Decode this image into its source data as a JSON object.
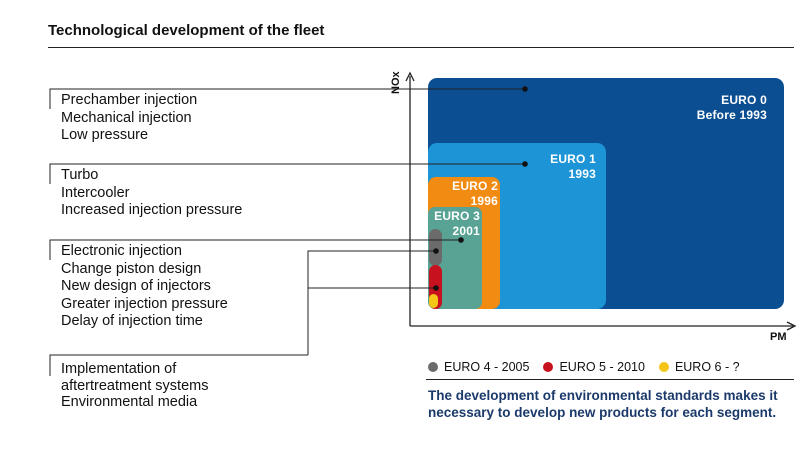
{
  "title": "Technological development of the fleet",
  "groups": [
    {
      "lines": [
        "Prechamber injection",
        "Mechanical injection",
        "Low pressure"
      ]
    },
    {
      "lines": [
        "Turbo",
        "Intercooler",
        "Increased injection pressure"
      ]
    },
    {
      "lines": [
        "Electronic injection",
        "Change piston design",
        "New design of injectors",
        "Greater injection pressure",
        "Delay of injection time"
      ]
    },
    {
      "lines": [
        "Implementation of",
        "aftertreatment systems",
        "Environmental media"
      ]
    }
  ],
  "axes": {
    "y_label": "NOx",
    "x_label": "PM"
  },
  "standards": [
    {
      "name": "EURO 0",
      "year": "Before 1993",
      "color": "#0b4f92"
    },
    {
      "name": "EURO 1",
      "year": "1993",
      "color": "#1d94d6"
    },
    {
      "name": "EURO 2",
      "year": "1996",
      "color": "#f28b12"
    },
    {
      "name": "EURO 3",
      "year": "2001",
      "color": "#58a394"
    }
  ],
  "legend": [
    {
      "label": "EURO 4 - 2005",
      "color": "#6b6b6b"
    },
    {
      "label": "EURO 5 - 2010",
      "color": "#c8111e"
    },
    {
      "label": "EURO 6 - ?",
      "color": "#f5c518"
    }
  ],
  "note": "The development of environmental standards makes it necessary to develop new products for each segment."
}
